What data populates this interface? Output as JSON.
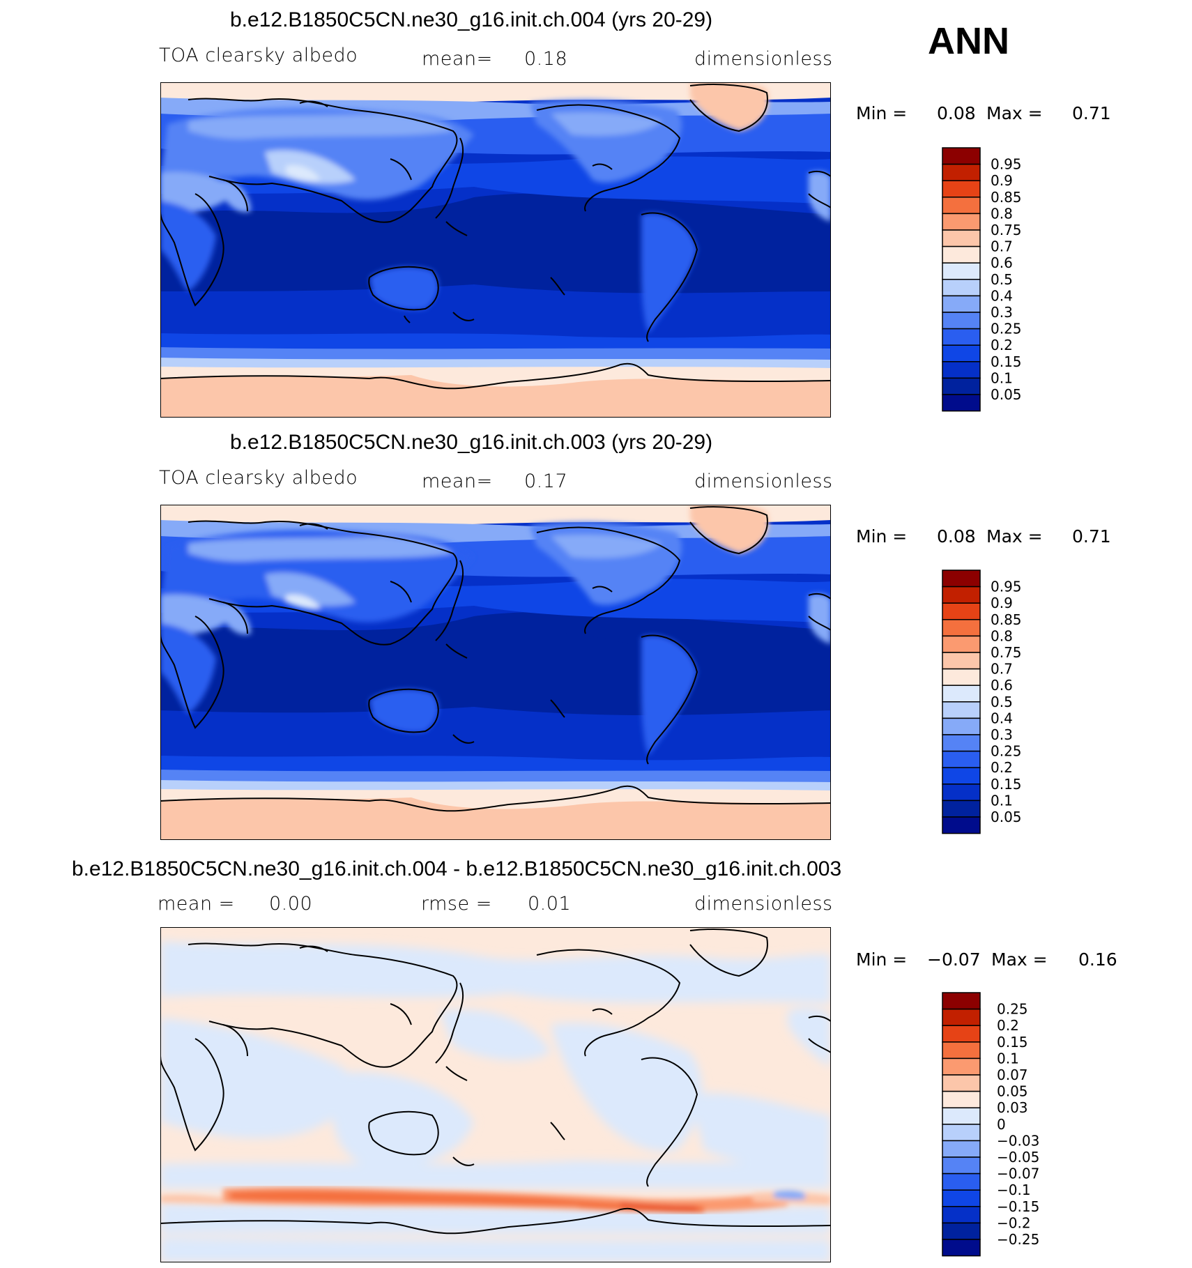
{
  "season": "ANN",
  "panels": [
    {
      "title": "b.e12.B1850C5CN.ne30_g16.init.ch.004 (yrs 20-29)",
      "variable": "TOA clearsky albedo",
      "stat_label": "mean=",
      "stat_value": "0.18",
      "units": "dimensionless",
      "min_label": "Min =",
      "min_value": "0.08",
      "max_label": "Max =",
      "max_value": "0.71",
      "colorbar_levels": [
        "0.95",
        "0.9",
        "0.85",
        "0.8",
        "0.75",
        "0.7",
        "0.6",
        "0.5",
        "0.4",
        "0.3",
        "0.25",
        "0.2",
        "0.15",
        "0.1",
        "0.05"
      ]
    },
    {
      "title": "b.e12.B1850C5CN.ne30_g16.init.ch.003 (yrs 20-29)",
      "variable": "TOA clearsky albedo",
      "stat_label": "mean=",
      "stat_value": "0.17",
      "units": "dimensionless",
      "min_label": "Min =",
      "min_value": "0.08",
      "max_label": "Max =",
      "max_value": "0.71",
      "colorbar_levels": [
        "0.95",
        "0.9",
        "0.85",
        "0.8",
        "0.75",
        "0.7",
        "0.6",
        "0.5",
        "0.4",
        "0.3",
        "0.25",
        "0.2",
        "0.15",
        "0.1",
        "0.05"
      ]
    },
    {
      "title": "b.e12.B1850C5CN.ne30_g16.init.ch.004 - b.e12.B1850C5CN.ne30_g16.init.ch.003",
      "stat_label": "mean =",
      "stat_value": "0.00",
      "stat2_label": "rmse =",
      "stat2_value": "0.01",
      "units": "dimensionless",
      "min_label": "Min =",
      "min_value": "−0.07",
      "max_label": "Max =",
      "max_value": "0.16",
      "colorbar_levels": [
        "0.25",
        "0.2",
        "0.15",
        "0.1",
        "0.07",
        "0.05",
        "0.03",
        "0",
        "−0.03",
        "−0.05",
        "−0.07",
        "−0.1",
        "−0.15",
        "−0.2",
        "−0.25"
      ]
    }
  ],
  "chart_data": [
    {
      "type": "heatmap",
      "title": "b.e12.B1850C5CN.ne30_g16.init.ch.004 (yrs 20-29)",
      "field": "TOA clearsky albedo",
      "units": "dimensionless",
      "mean": 0.18,
      "min": 0.08,
      "max": 0.71,
      "contour_levels": [
        0.05,
        0.1,
        0.15,
        0.2,
        0.25,
        0.3,
        0.4,
        0.5,
        0.6,
        0.7,
        0.75,
        0.8,
        0.85,
        0.9,
        0.95
      ],
      "colors": [
        "#000c8c",
        "#00229e",
        "#0530c8",
        "#0f46e6",
        "#2a5ef0",
        "#5583f5",
        "#86aaf8",
        "#b8d0fb",
        "#dce9fc",
        "#fde9dc",
        "#fcc6aa",
        "#fb9a70",
        "#f4703e",
        "#e64316",
        "#c22000",
        "#8c0000"
      ],
      "central_longitude": 180
    },
    {
      "type": "heatmap",
      "title": "b.e12.B1850C5CN.ne30_g16.init.ch.003 (yrs 20-29)",
      "field": "TOA clearsky albedo",
      "units": "dimensionless",
      "mean": 0.17,
      "min": 0.08,
      "max": 0.71,
      "contour_levels": [
        0.05,
        0.1,
        0.15,
        0.2,
        0.25,
        0.3,
        0.4,
        0.5,
        0.6,
        0.7,
        0.75,
        0.8,
        0.85,
        0.9,
        0.95
      ],
      "colors": [
        "#000c8c",
        "#00229e",
        "#0530c8",
        "#0f46e6",
        "#2a5ef0",
        "#5583f5",
        "#86aaf8",
        "#b8d0fb",
        "#dce9fc",
        "#fde9dc",
        "#fcc6aa",
        "#fb9a70",
        "#f4703e",
        "#e64316",
        "#c22000",
        "#8c0000"
      ],
      "central_longitude": 180
    },
    {
      "type": "heatmap",
      "title": "b.e12.B1850C5CN.ne30_g16.init.ch.004 - b.e12.B1850C5CN.ne30_g16.init.ch.003",
      "units": "dimensionless",
      "mean": 0.0,
      "rmse": 0.01,
      "min": -0.07,
      "max": 0.16,
      "contour_levels": [
        -0.25,
        -0.2,
        -0.15,
        -0.1,
        -0.07,
        -0.05,
        -0.03,
        0,
        0.03,
        0.05,
        0.07,
        0.1,
        0.15,
        0.2,
        0.25
      ],
      "colors": [
        "#000c8c",
        "#00229e",
        "#0530c8",
        "#0f46e6",
        "#2a5ef0",
        "#5583f5",
        "#86aaf8",
        "#b8d0fb",
        "#dce9fc",
        "#fde9dc",
        "#fcc6aa",
        "#fb9a70",
        "#f4703e",
        "#e64316",
        "#c22000",
        "#8c0000"
      ],
      "central_longitude": 180
    }
  ]
}
